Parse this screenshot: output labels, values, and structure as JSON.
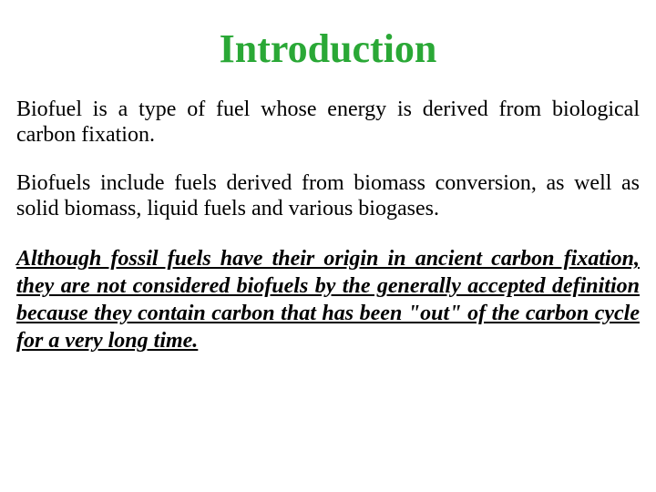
{
  "title": {
    "text": "Introduction",
    "color": "#2aa836",
    "fontsize": 44
  },
  "paragraphs": [
    {
      "text": "Biofuel is a type of fuel whose energy is derived from biological carbon fixation.",
      "color": "#000000",
      "fontsize": 24,
      "style": "normal"
    },
    {
      "text": "Biofuels include fuels derived from biomass conversion, as well as solid biomass, liquid fuels and various biogases.",
      "color": "#000000",
      "fontsize": 24,
      "style": "normal"
    },
    {
      "text": "Although fossil fuels have their origin in ancient carbon fixation, they are not considered biofuels by the generally accepted definition because they contain carbon that has been \"out\" of the carbon cycle for a very long time.",
      "color": "#000000",
      "fontsize": 24,
      "style": "emphasis"
    }
  ],
  "background_color": "#ffffff"
}
